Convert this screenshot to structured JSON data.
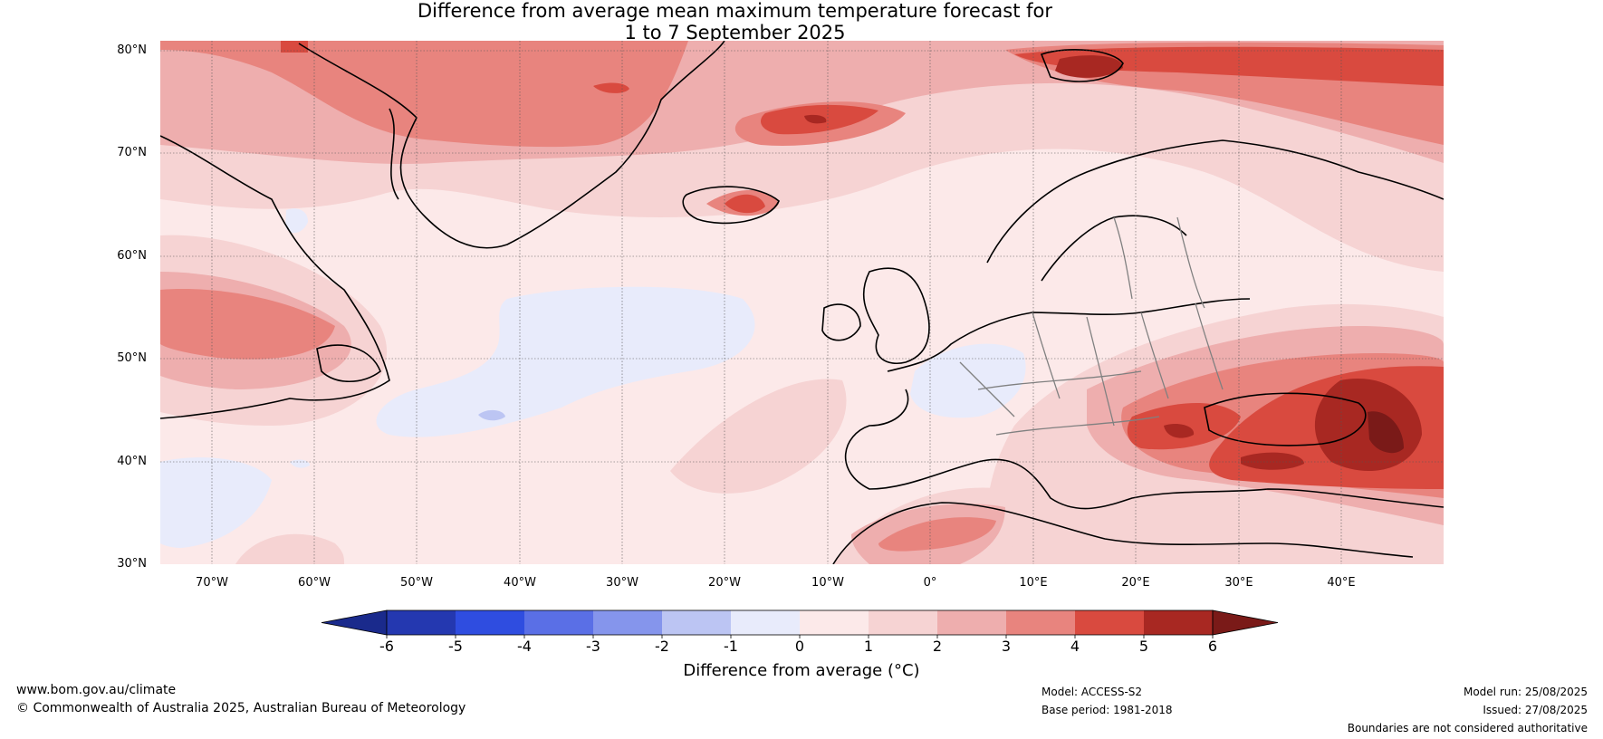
{
  "title": {
    "line1": "Difference from average mean maximum temperature forecast for",
    "line2": "1 to 7 September 2025"
  },
  "map": {
    "projection": "equirectangular",
    "lon_range": [
      -75,
      50
    ],
    "lat_range": [
      30,
      81
    ],
    "latitude_labels": [
      "80°N",
      "70°N",
      "60°N",
      "50°N",
      "40°N",
      "30°N"
    ],
    "longitude_labels": [
      "70°W",
      "60°W",
      "50°W",
      "40°W",
      "30°W",
      "20°W",
      "10°W",
      "0°",
      "10°E",
      "20°E",
      "30°E",
      "40°E"
    ],
    "gridlines": true,
    "anomaly_regions_celsius": [
      {
        "region": "Greenland Sea / Svalbard",
        "anomaly": "3 to 5"
      },
      {
        "region": "East of Iceland",
        "anomaly": "4 to 5"
      },
      {
        "region": "Iceland",
        "anomaly": "4 to 5"
      },
      {
        "region": "Labrador",
        "anomaly": "2 to 4"
      },
      {
        "region": "Black Sea / Turkey / Caucasus",
        "anomaly": "4 to 6"
      },
      {
        "region": "Balkans / Romania",
        "anomaly": "3 to 5"
      },
      {
        "region": "Mid-Atlantic",
        "anomaly": "-1 to 0"
      },
      {
        "region": "France",
        "anomaly": "-1 to 0"
      },
      {
        "region": "North Africa (Morocco)",
        "anomaly": "2 to 4"
      },
      {
        "region": "Scandinavia / Central Europe",
        "anomaly": "0 to 1"
      }
    ]
  },
  "colorbar": {
    "ticks": [
      "-6",
      "-5",
      "-4",
      "-3",
      "-2",
      "-1",
      "0",
      "1",
      "2",
      "3",
      "4",
      "5",
      "6"
    ],
    "label": "Difference from average (°C)",
    "colors": [
      "#1a2a8c",
      "#2438b0",
      "#2f4de0",
      "#5a6fe6",
      "#8595ec",
      "#bcc5f3",
      "#e8ebfb",
      "#fce9e9",
      "#f6d3d3",
      "#eeaeae",
      "#e8847e",
      "#d94a3f",
      "#a82822",
      "#7a1a18"
    ]
  },
  "footer": {
    "website": "www.bom.gov.au/climate",
    "copyright": "© Commonwealth of Australia 2025, Australian Bureau of Meteorology",
    "model": "Model: ACCESS-S2",
    "base_period": "Base period: 1981-2018",
    "model_run": "Model run: 25/08/2025",
    "issued": "Issued: 27/08/2025",
    "disclaimer": "Boundaries are not considered authoritative"
  }
}
